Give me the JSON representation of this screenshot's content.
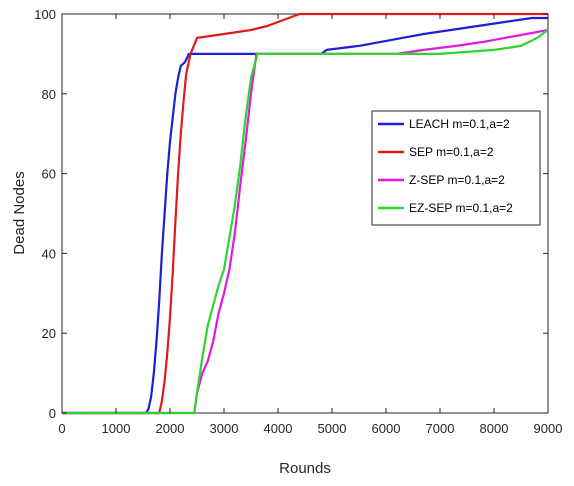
{
  "chart_data": {
    "type": "line",
    "xlabel": "Rounds",
    "ylabel": "Dead Nodes",
    "xlim": [
      0,
      9000
    ],
    "ylim": [
      0,
      100
    ],
    "x_ticks": [
      0,
      1000,
      2000,
      3000,
      4000,
      5000,
      6000,
      7000,
      8000,
      9000
    ],
    "y_ticks": [
      0,
      20,
      40,
      60,
      80,
      100
    ],
    "grid": false,
    "legend_position": "right",
    "series": [
      {
        "name": "LEACH  m=0.1,a=2",
        "color": "#1f1fd6",
        "points": [
          [
            0,
            0
          ],
          [
            1560,
            0
          ],
          [
            1600,
            1
          ],
          [
            1650,
            4
          ],
          [
            1700,
            10
          ],
          [
            1750,
            18
          ],
          [
            1800,
            28
          ],
          [
            1850,
            40
          ],
          [
            1900,
            50
          ],
          [
            1950,
            60
          ],
          [
            2000,
            68
          ],
          [
            2050,
            74
          ],
          [
            2100,
            80
          ],
          [
            2150,
            84
          ],
          [
            2200,
            87
          ],
          [
            2280,
            88
          ],
          [
            2350,
            90
          ],
          [
            4800,
            90
          ],
          [
            4900,
            91
          ],
          [
            5500,
            92
          ],
          [
            5900,
            93
          ],
          [
            6300,
            94
          ],
          [
            6700,
            95
          ],
          [
            7200,
            96
          ],
          [
            7700,
            97
          ],
          [
            8200,
            98
          ],
          [
            8700,
            99
          ],
          [
            9000,
            99
          ]
        ]
      },
      {
        "name": "SEP  m=0.1,a=2",
        "color": "#e01a1a",
        "points": [
          [
            0,
            0
          ],
          [
            1800,
            0
          ],
          [
            1850,
            3
          ],
          [
            1900,
            8
          ],
          [
            1950,
            15
          ],
          [
            2000,
            24
          ],
          [
            2050,
            35
          ],
          [
            2100,
            48
          ],
          [
            2150,
            60
          ],
          [
            2200,
            70
          ],
          [
            2250,
            78
          ],
          [
            2300,
            85
          ],
          [
            2380,
            90
          ],
          [
            2500,
            94
          ],
          [
            3000,
            95
          ],
          [
            3500,
            96
          ],
          [
            3800,
            97
          ],
          [
            4200,
            99
          ],
          [
            4400,
            100
          ],
          [
            9000,
            100
          ]
        ]
      },
      {
        "name": "Z-SEP  m=0.1,a=2",
        "color": "#e01ae0",
        "points": [
          [
            0,
            0
          ],
          [
            2450,
            0
          ],
          [
            2500,
            5
          ],
          [
            2600,
            10
          ],
          [
            2700,
            13
          ],
          [
            2800,
            18
          ],
          [
            2900,
            25
          ],
          [
            3000,
            30
          ],
          [
            3100,
            36
          ],
          [
            3200,
            45
          ],
          [
            3300,
            57
          ],
          [
            3400,
            68
          ],
          [
            3500,
            80
          ],
          [
            3600,
            90
          ],
          [
            6200,
            90
          ],
          [
            6700,
            91
          ],
          [
            7300,
            92
          ],
          [
            7800,
            93
          ],
          [
            8200,
            94
          ],
          [
            8600,
            95
          ],
          [
            9000,
            96
          ]
        ]
      },
      {
        "name": "EZ-SEP  m=0.1,a=2",
        "color": "#2fd42f",
        "points": [
          [
            0,
            0
          ],
          [
            2450,
            0
          ],
          [
            2500,
            5
          ],
          [
            2600,
            14
          ],
          [
            2700,
            22
          ],
          [
            2800,
            27
          ],
          [
            2900,
            32
          ],
          [
            3000,
            36
          ],
          [
            3100,
            44
          ],
          [
            3200,
            52
          ],
          [
            3300,
            62
          ],
          [
            3400,
            74
          ],
          [
            3500,
            84
          ],
          [
            3620,
            90
          ],
          [
            7000,
            90
          ],
          [
            8000,
            91
          ],
          [
            8500,
            92
          ],
          [
            8800,
            94
          ],
          [
            9000,
            96
          ]
        ]
      }
    ]
  }
}
